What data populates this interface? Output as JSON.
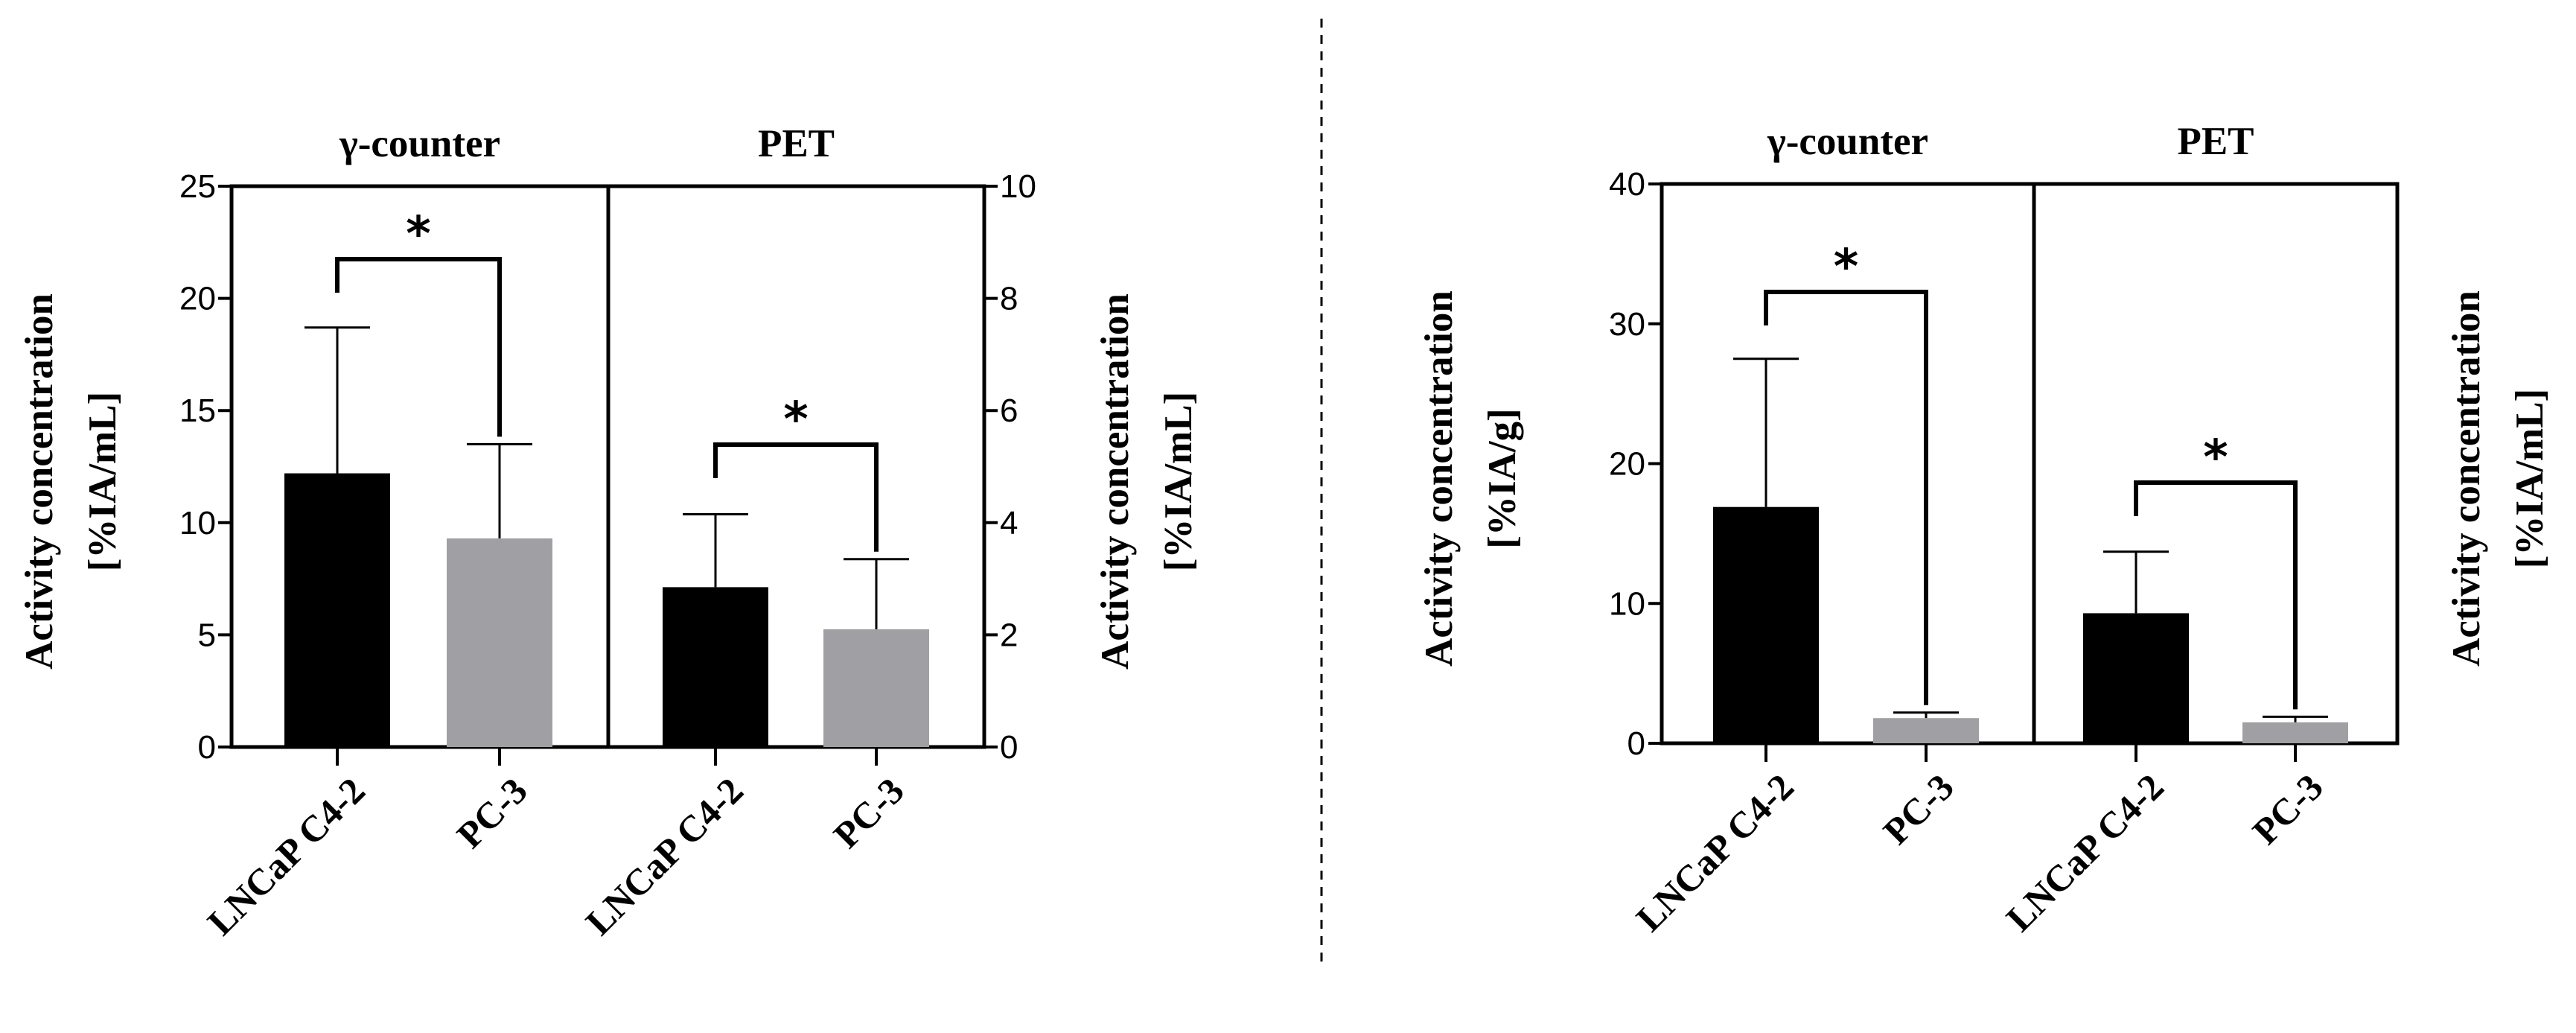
{
  "chart_data": [
    {
      "type": "bar",
      "panels": [
        {
          "title": "γ-counter",
          "axis": "left",
          "ylim": [
            0,
            25
          ],
          "yticks": [
            0,
            5,
            10,
            15,
            20,
            25
          ],
          "ylabel_line1": "Activity concentration",
          "ylabel_line2": "[%IA/mL]",
          "categories": [
            "LNCaP C4-2",
            "PC-3"
          ],
          "values": [
            12.2,
            9.3
          ],
          "errors": [
            6.5,
            4.2
          ],
          "colors": [
            "#000000",
            "#a0a0a4"
          ],
          "significance": "*"
        },
        {
          "title": "PET",
          "axis": "right",
          "ylim": [
            0,
            10
          ],
          "yticks": [
            0,
            2,
            4,
            6,
            8,
            10
          ],
          "ylabel_line1": "Activity concentration",
          "ylabel_line2": "[%IA/mL]",
          "categories": [
            "LNCaP C4-2",
            "PC-3"
          ],
          "values": [
            2.85,
            2.1
          ],
          "errors": [
            1.3,
            1.25
          ],
          "colors": [
            "#000000",
            "#a0a0a4"
          ],
          "significance": "*"
        }
      ]
    },
    {
      "type": "bar",
      "panels": [
        {
          "title": "γ-counter",
          "axis": "left",
          "ylim": [
            0,
            40
          ],
          "yticks": [
            0,
            10,
            20,
            30,
            40
          ],
          "ylabel_line1": "Activity concentration",
          "ylabel_line2": "[%IA/g]",
          "categories": [
            "LNCaP C4-2",
            "PC-3"
          ],
          "values": [
            16.9,
            1.8
          ],
          "errors": [
            10.6,
            0.4
          ],
          "colors": [
            "#000000",
            "#a0a0a4"
          ],
          "significance": "*"
        },
        {
          "title": "PET",
          "axis": "none",
          "ylim": [
            0,
            40
          ],
          "yticks": [],
          "ylabel_line1": "Activity concentration",
          "ylabel_line2": "[%IA/mL]",
          "categories": [
            "LNCaP C4-2",
            "PC-3"
          ],
          "values": [
            9.3,
            1.5
          ],
          "errors": [
            4.4,
            0.4
          ],
          "colors": [
            "#000000",
            "#a0a0a4"
          ],
          "significance": "*"
        }
      ]
    }
  ]
}
